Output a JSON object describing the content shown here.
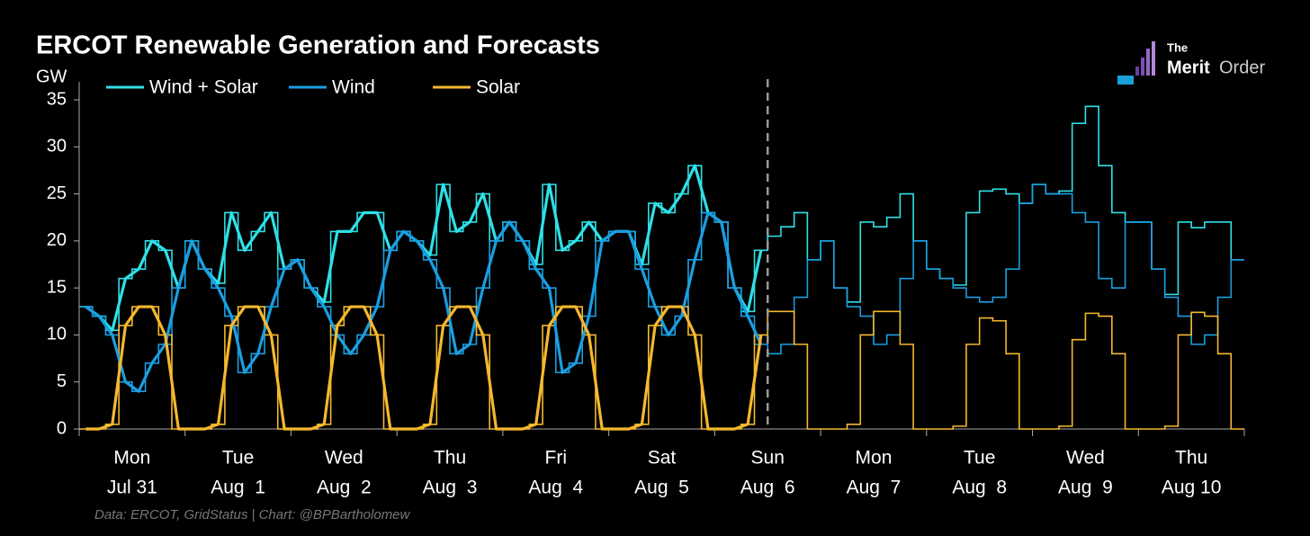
{
  "chart_data": {
    "type": "line",
    "title": "ERCOT Renewable Generation and Forecasts",
    "y_label": "GW",
    "source": "Data: ERCOT, GridStatus | Chart: @BPBartholomew",
    "logo": {
      "top": "The",
      "bold": "Merit",
      "rest": "Order"
    },
    "days": [
      {
        "weekday": "Mon",
        "date": "Jul 31"
      },
      {
        "weekday": "Tue",
        "date": "Aug  1"
      },
      {
        "weekday": "Wed",
        "date": "Aug  2"
      },
      {
        "weekday": "Thu",
        "date": "Aug  3"
      },
      {
        "weekday": "Fri",
        "date": "Aug  4"
      },
      {
        "weekday": "Sat",
        "date": "Aug  5"
      },
      {
        "weekday": "Sun",
        "date": "Aug  6"
      },
      {
        "weekday": "Mon",
        "date": "Aug  7"
      },
      {
        "weekday": "Tue",
        "date": "Aug  8"
      },
      {
        "weekday": "Wed",
        "date": "Aug  9"
      },
      {
        "weekday": "Thu",
        "date": "Aug 10"
      }
    ],
    "ylim": [
      0,
      35
    ],
    "yticks": [
      0,
      5,
      10,
      15,
      20,
      25,
      30,
      35
    ],
    "series": [
      {
        "name": "Wind + Solar",
        "color": "#2fe0e8",
        "values": [
          13,
          12,
          10.5,
          16,
          17,
          20,
          19,
          15,
          20,
          17,
          15.5,
          23,
          19,
          21,
          23,
          17,
          18,
          15,
          13.5,
          21,
          21,
          23,
          23,
          19,
          21,
          20,
          18.5,
          26,
          21,
          22,
          25,
          20,
          22,
          20,
          17.5,
          26,
          19,
          20,
          22,
          20,
          21,
          21,
          17.5,
          24,
          23,
          25,
          28,
          23,
          22,
          15,
          12.5,
          19,
          null,
          null,
          null,
          null,
          null,
          null,
          null,
          null,
          null,
          null,
          null,
          null,
          null,
          null,
          null,
          null,
          null,
          null,
          null,
          null,
          null,
          null,
          null,
          null,
          null,
          null,
          null,
          null,
          null,
          null,
          null,
          null,
          null,
          null,
          null,
          null
        ],
        "forecast": [
          13,
          12,
          10.5,
          16,
          17,
          20,
          19,
          15,
          20,
          17,
          15.5,
          23,
          19,
          21,
          23,
          17,
          18,
          15,
          13.5,
          21,
          21,
          23,
          23,
          19,
          21,
          20,
          18.5,
          26,
          21,
          22,
          25,
          20,
          22,
          20,
          17.5,
          26,
          19,
          20,
          22,
          20,
          21,
          21,
          17.5,
          24,
          23,
          25,
          28,
          23,
          22,
          15,
          12.5,
          19,
          20.5,
          21.5,
          23,
          18,
          20,
          15,
          13.5,
          22,
          21.5,
          22.5,
          25,
          20,
          17,
          16,
          15.3,
          23,
          25.3,
          25.5,
          25,
          24,
          26,
          25,
          25.3,
          32.5,
          34.3,
          28,
          23,
          22,
          22,
          17,
          14.3,
          22,
          21.4,
          22,
          22,
          18
        ]
      },
      {
        "name": "Wind",
        "color": "#1a9ee0",
        "values": [
          13,
          12,
          10,
          5,
          4,
          7,
          9,
          15,
          20,
          17,
          15,
          12,
          6,
          8,
          13,
          17,
          18,
          15,
          13,
          10,
          8,
          10,
          13,
          19,
          21,
          20,
          18,
          15,
          8,
          9,
          15,
          20,
          22,
          20,
          17,
          15,
          6,
          7,
          12,
          20,
          21,
          21,
          17,
          13,
          10,
          12,
          18,
          23,
          22,
          15,
          12,
          9,
          null,
          null,
          null,
          null,
          null,
          null,
          null,
          null,
          null,
          null,
          null,
          null,
          null,
          null,
          null,
          null,
          null,
          null,
          null,
          null,
          null,
          null,
          null,
          null,
          null,
          null,
          null,
          null,
          null,
          null,
          null,
          null,
          null,
          null,
          null,
          null
        ],
        "forecast": [
          13,
          12,
          10,
          5,
          4,
          7,
          9,
          15,
          20,
          17,
          15,
          12,
          6,
          8,
          13,
          17,
          18,
          15,
          13,
          10,
          8,
          10,
          13,
          19,
          21,
          20,
          18,
          15,
          8,
          9,
          15,
          20,
          22,
          20,
          17,
          15,
          6,
          7,
          12,
          20,
          21,
          21,
          17,
          13,
          10,
          12,
          18,
          23,
          22,
          15,
          12,
          9,
          8,
          9,
          14,
          18,
          20,
          15,
          13,
          12,
          9,
          10,
          16,
          20,
          17,
          16,
          15,
          14,
          13.5,
          14,
          17,
          24,
          26,
          25,
          25,
          23,
          22,
          16,
          15,
          22,
          22,
          17,
          14,
          12,
          9,
          10,
          14,
          18
        ]
      },
      {
        "name": "Solar",
        "color": "#f5b82e",
        "values": [
          0,
          0,
          0.5,
          11,
          13,
          13,
          10,
          0,
          0,
          0,
          0.5,
          11,
          13,
          13,
          10,
          0,
          0,
          0,
          0.5,
          11,
          13,
          13,
          10,
          0,
          0,
          0,
          0.5,
          11,
          13,
          13,
          10,
          0,
          0,
          0,
          0.5,
          11,
          13,
          13,
          10,
          0,
          0,
          0,
          0.5,
          11,
          13,
          13,
          10,
          0,
          0,
          0,
          0.5,
          10,
          null,
          null,
          null,
          null,
          null,
          null,
          null,
          null,
          null,
          null,
          null,
          null,
          null,
          null,
          null,
          null,
          null,
          null,
          null,
          null,
          null,
          null,
          null,
          null,
          null,
          null,
          null,
          null,
          null,
          null,
          null,
          null,
          null,
          null,
          null,
          null
        ],
        "forecast": [
          0,
          0,
          0.5,
          11,
          13,
          13,
          10,
          0,
          0,
          0,
          0.5,
          11,
          13,
          13,
          10,
          0,
          0,
          0,
          0.5,
          11,
          13,
          13,
          10,
          0,
          0,
          0,
          0.5,
          11,
          13,
          13,
          10,
          0,
          0,
          0,
          0.5,
          11,
          13,
          13,
          10,
          0,
          0,
          0,
          0.5,
          11,
          13,
          13,
          10,
          0,
          0,
          0,
          0.5,
          10,
          12.5,
          12.5,
          9,
          0,
          0,
          0,
          0.5,
          10,
          12.5,
          12.5,
          9,
          0,
          0,
          0,
          0.3,
          9,
          11.8,
          11.5,
          8,
          0,
          0,
          0,
          0.3,
          9.5,
          12.3,
          12,
          8,
          0,
          0,
          0,
          0.3,
          10,
          12.4,
          12,
          8,
          0
        ]
      }
    ]
  }
}
